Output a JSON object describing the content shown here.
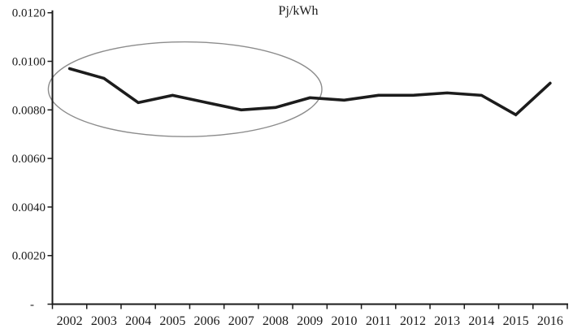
{
  "chart_data": {
    "type": "line",
    "title": "Pj/kWh",
    "x": [
      2002,
      2003,
      2004,
      2005,
      2006,
      2007,
      2008,
      2009,
      2010,
      2011,
      2012,
      2013,
      2014,
      2015,
      2016
    ],
    "series": [
      {
        "name": "Pj/kWh",
        "values": [
          0.0097,
          0.0093,
          0.0083,
          0.0086,
          0.0083,
          0.008,
          0.0081,
          0.0085,
          0.0084,
          0.0086,
          0.0086,
          0.0087,
          0.0086,
          0.0078,
          0.0091
        ]
      }
    ],
    "xlabel": "",
    "ylabel": "",
    "ylim": [
      0,
      0.012
    ],
    "yticks": [
      {
        "value": 0.012,
        "label": "0.0120"
      },
      {
        "value": 0.01,
        "label": "0.0100"
      },
      {
        "value": 0.008,
        "label": "0.0080"
      },
      {
        "value": 0.006,
        "label": "0.0060"
      },
      {
        "value": 0.004,
        "label": "0.0040"
      },
      {
        "value": 0.002,
        "label": "0.0020"
      },
      {
        "value": 0.0,
        "label": "-"
      }
    ],
    "grid": false,
    "legend": "none",
    "axis_color": "#1a1a1a",
    "line_color": "#1c1c1c",
    "annotation": {
      "shape": "ellipse",
      "highlights": "2002-2009",
      "color": "#8c8c8c",
      "x_from": 2001.38,
      "x_to": 2009.35,
      "y_from": 0.0069,
      "y_to": 0.0108
    }
  }
}
